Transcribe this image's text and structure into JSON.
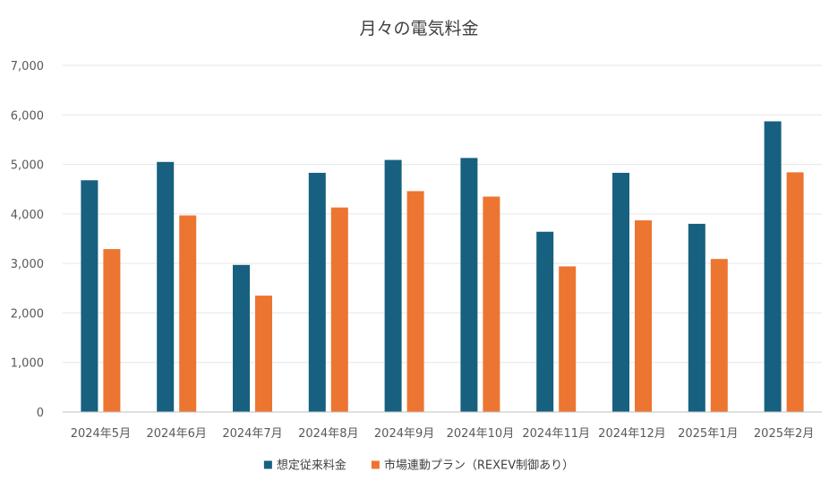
{
  "chart_data": {
    "type": "bar",
    "title": "月々の電気料金",
    "xlabel": "",
    "ylabel": "",
    "categories": [
      "2024年5月",
      "2024年6月",
      "2024年7月",
      "2024年8月",
      "2024年9月",
      "2024年10月",
      "2024年11月",
      "2024年12月",
      "2025年1月",
      "2025年2月"
    ],
    "series": [
      {
        "name": "想定従来料金",
        "color": "#17607f",
        "values": [
          4680,
          5050,
          2970,
          4830,
          5090,
          5130,
          3640,
          4830,
          3800,
          5870
        ]
      },
      {
        "name": "市場連動プラン（REXEV制御あり）",
        "color": "#ec7531",
        "values": [
          3290,
          3970,
          2350,
          4130,
          4460,
          4350,
          2940,
          3870,
          3090,
          4840
        ]
      }
    ],
    "ylim": [
      0,
      7000
    ],
    "yticks": [
      "0",
      "1,000",
      "2,000",
      "3,000",
      "4,000",
      "5,000",
      "6,000",
      "7,000"
    ],
    "grid": true,
    "legend_position": "bottom"
  }
}
